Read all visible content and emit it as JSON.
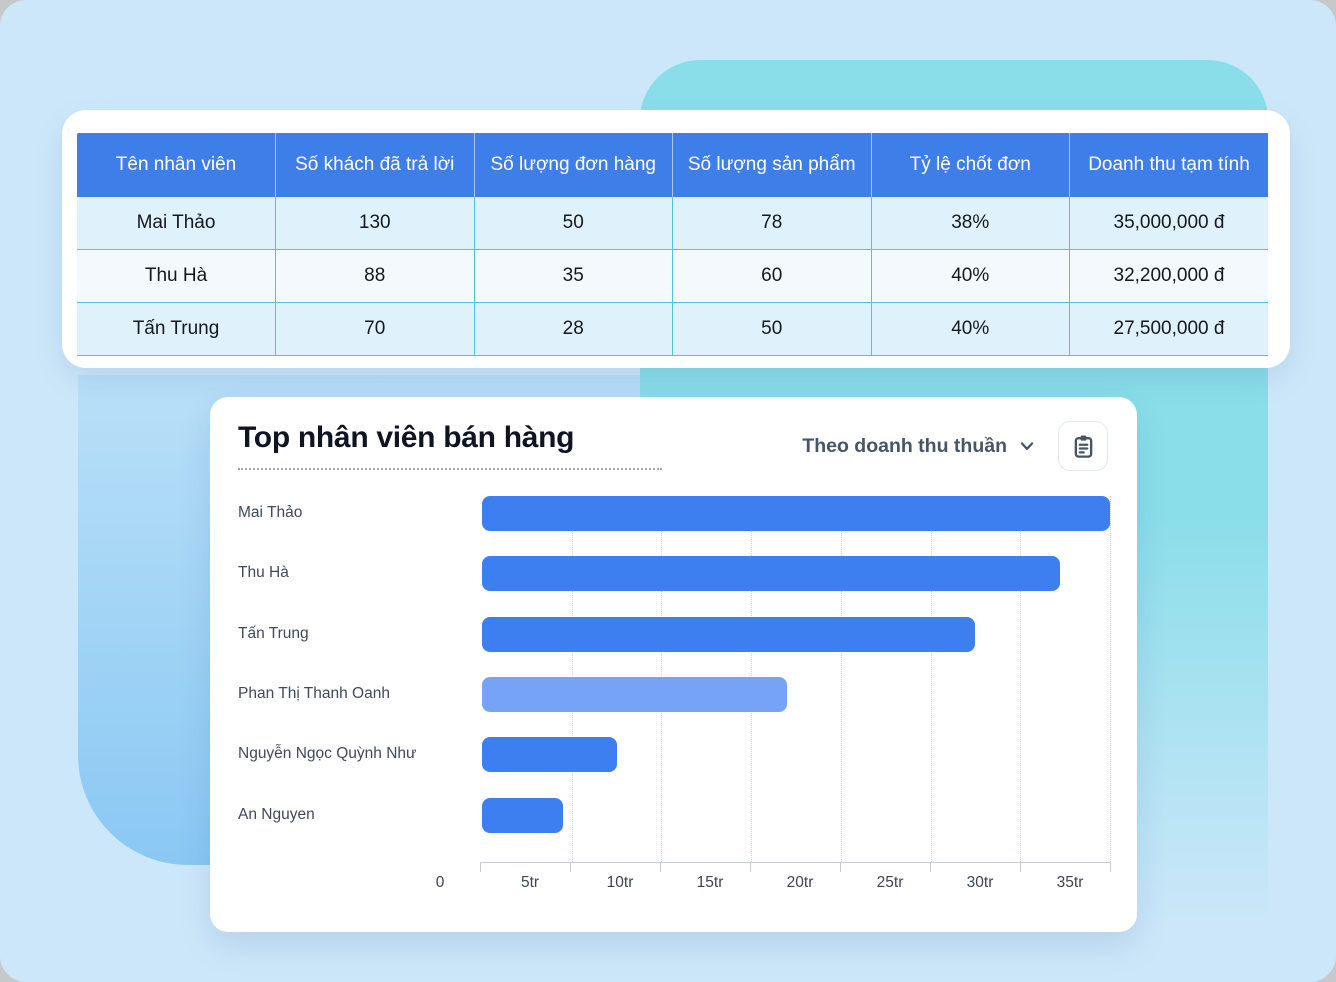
{
  "table": {
    "headers": [
      "Tên nhân viên",
      "Số khách đã trả lời",
      "Số lượng đơn hàng",
      "Số lượng sản phẩm",
      "Tỷ lệ chốt đơn",
      "Doanh thu tạm tính"
    ],
    "rows": [
      [
        "Mai Thảo",
        "130",
        "50",
        "78",
        "38%",
        "35,000,000 đ"
      ],
      [
        "Thu Hà",
        "88",
        "35",
        "60",
        "40%",
        "32,200,000 đ"
      ],
      [
        "Tấn Trung",
        "70",
        "28",
        "50",
        "40%",
        "27,500,000 đ"
      ]
    ]
  },
  "chart_data": {
    "type": "bar",
    "orientation": "horizontal",
    "title": "Top nhân viên bán hàng",
    "filter_label": "Theo doanh thu thuần",
    "categories": [
      "Mai Thảo",
      "Thu Hà",
      "Tấn Trung",
      "Phan Thị Thanh Oanh",
      "Nguyễn Ngọc Quỳnh Như",
      "An Nguyen"
    ],
    "values": [
      35000000,
      32200000,
      27500000,
      17000000,
      7500000,
      4500000
    ],
    "bar_colors": [
      "#3d7ef0",
      "#3d7ef0",
      "#3d7ef0",
      "#77a3f6",
      "#3d7ef0",
      "#3d7ef0"
    ],
    "xlim": [
      0,
      35000000
    ],
    "x_ticks": [
      0,
      5000000,
      10000000,
      15000000,
      20000000,
      25000000,
      30000000,
      35000000
    ],
    "x_tick_labels": [
      "0",
      "5tr",
      "10tr",
      "15tr",
      "20tr",
      "25tr",
      "30tr",
      "35tr"
    ],
    "grid": true,
    "legend": false
  },
  "icons": {
    "dropdown": "chevron-down-icon",
    "copy_button": "clipboard-icon"
  },
  "colors": {
    "page_bg": "#cde7fa",
    "teal_shape": "#8adee9",
    "blue_shape_top": "#b9e0f8",
    "blue_shape_bottom": "#8ac8f3",
    "table_header_bg": "#3e7ee8",
    "table_border": "#4ec4d6",
    "row_odd_bg": "#dff1fb",
    "row_even_bg": "#f4f9fe",
    "bar_primary": "#3d7ef0",
    "bar_highlight": "#77a3f6",
    "text_dark": "#0e1422",
    "text_slate": "#45566b"
  }
}
